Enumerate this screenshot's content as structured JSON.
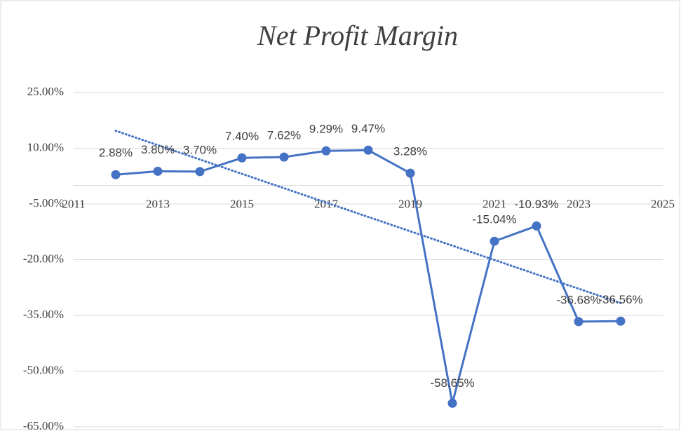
{
  "chart_data": {
    "type": "line",
    "title": "Net Profit Margin",
    "x": [
      2012,
      2013,
      2014,
      2015,
      2016,
      2017,
      2018,
      2019,
      2020,
      2021,
      2022,
      2023,
      2024
    ],
    "series": [
      {
        "name": "Net Profit Margin",
        "color": "#4472c4",
        "values": [
          2.88,
          3.8,
          3.7,
          7.4,
          7.62,
          9.29,
          9.47,
          3.28,
          -58.65,
          -15.04,
          -10.93,
          -36.68,
          -36.56
        ],
        "value_labels": [
          "2.88%",
          "3.80%",
          "3.70%",
          "7.40%",
          "7.62%",
          "9.29%",
          "9.47%",
          "3.28%",
          "-58.65%",
          "-15.04%",
          "-10.93%",
          "-36.68%",
          "-36.56%"
        ]
      }
    ],
    "trendline": "linear",
    "xlim": [
      2011,
      2025
    ],
    "xticks": [
      2011,
      2013,
      2015,
      2017,
      2019,
      2021,
      2023,
      2025
    ],
    "ylim": [
      -65,
      25
    ],
    "yticks": [
      {
        "value": -65,
        "label": "-65.00%"
      },
      {
        "value": -50,
        "label": "-50.00%"
      },
      {
        "value": -35,
        "label": "-35.00%"
      },
      {
        "value": -20,
        "label": "-20.00%"
      },
      {
        "value": -5,
        "label": "-5.00%"
      },
      {
        "value": 10,
        "label": "10.00%"
      },
      {
        "value": 25,
        "label": "25.00%"
      }
    ],
    "grid": true
  }
}
